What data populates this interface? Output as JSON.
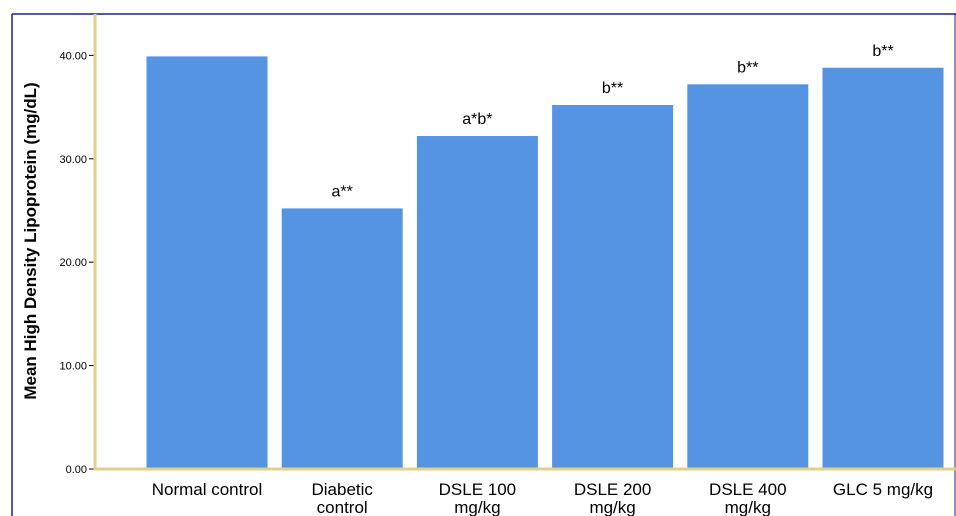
{
  "chart_data": {
    "type": "bar",
    "title": "",
    "xlabel": "",
    "ylabel": "Mean High Density Lipoprotein (mg/dL)",
    "ylim": [
      0,
      44
    ],
    "yticks": [
      "0.00",
      "10.00",
      "20.00",
      "30.00",
      "40.00"
    ],
    "categories": [
      [
        "Normal control"
      ],
      [
        "Diabetic",
        "control"
      ],
      [
        "DSLE 100",
        "mg/kg"
      ],
      [
        "DSLE 200",
        "mg/kg"
      ],
      [
        "DSLE 400",
        "mg/kg"
      ],
      [
        "GLC 5 mg/kg"
      ]
    ],
    "values": [
      39.9,
      25.2,
      32.2,
      35.2,
      37.2,
      38.8
    ],
    "annotations": [
      "",
      "a**",
      "a*b*",
      "b**",
      "b**",
      "b**"
    ],
    "grid": false,
    "legend": "none",
    "colors": {
      "bar": "#5594e2",
      "frame": "#1f1f8f",
      "axis": "#e0d08a"
    }
  }
}
